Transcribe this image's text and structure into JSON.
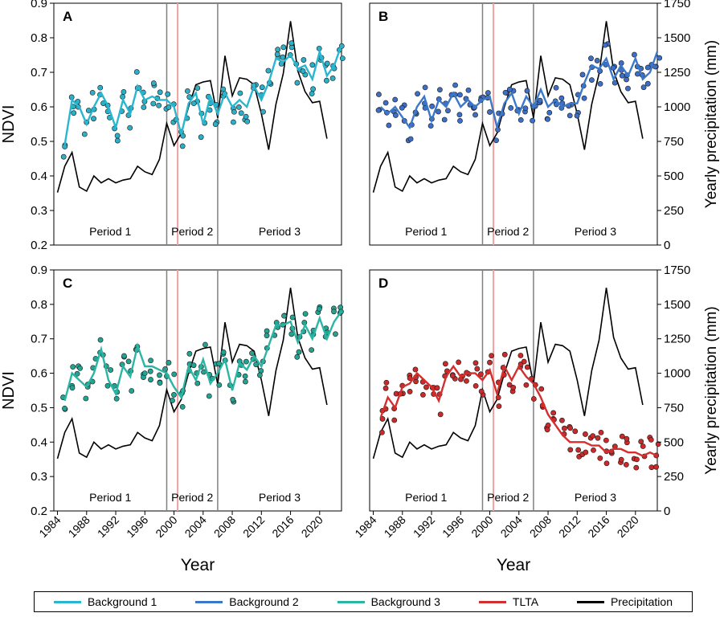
{
  "figure": {
    "x_axis_label": "Year",
    "left_axis_label": "NDVI",
    "right_axis_label": "Yearly precipitation (mm)",
    "period_labels": [
      "Period 1",
      "Period 2",
      "Period 3"
    ],
    "boundary_years": [
      1999,
      2006
    ],
    "event_year": 2000.5,
    "x_ticks": [
      1984,
      1988,
      1992,
      1996,
      2000,
      2004,
      2008,
      2012,
      2016,
      2020
    ],
    "ndvi_ticks": [
      "0.2",
      "0.3",
      "0.4",
      "0.5",
      "0.6",
      "0.7",
      "0.8",
      "0.9"
    ],
    "precip_ticks": [
      "0",
      "250",
      "500",
      "750",
      "1000",
      "1250",
      "1500",
      "1750"
    ]
  },
  "legend": [
    {
      "label": "Background 1",
      "color": "#29b6d0"
    },
    {
      "label": "Background 2",
      "color": "#3b78c9"
    },
    {
      "label": "Background 3",
      "color": "#2bb5a4"
    },
    {
      "label": "TLTA",
      "color": "#d42f2f"
    },
    {
      "label": "Precipitation",
      "color": "#000000"
    }
  ],
  "chart_data": [
    {
      "type": "line",
      "panel": "A",
      "title": "",
      "xlabel": "",
      "ylabel": "NDVI",
      "ylim": [
        0.2,
        0.9
      ],
      "xlim": [
        1983.5,
        2023
      ],
      "series": [
        {
          "name": "Background 1",
          "color": "#29b6d0",
          "point_fill": "#2bb0c9",
          "x": [
            1985,
            1986,
            1987,
            1988,
            1989,
            1990,
            1991,
            1992,
            1993,
            1994,
            1995,
            1996,
            1997,
            1998,
            1999,
            2000,
            2001,
            2002,
            2003,
            2004,
            2005,
            2006,
            2007,
            2008,
            2009,
            2010,
            2011,
            2012,
            2013,
            2014,
            2015,
            2016,
            2017,
            2018,
            2019,
            2020,
            2021,
            2022,
            2023
          ],
          "values": [
            0.49,
            0.62,
            0.6,
            0.55,
            0.6,
            0.64,
            0.6,
            0.54,
            0.62,
            0.58,
            0.66,
            0.62,
            0.63,
            0.62,
            0.62,
            0.6,
            0.52,
            0.61,
            0.64,
            0.55,
            0.63,
            0.58,
            0.64,
            0.6,
            0.62,
            0.6,
            0.66,
            0.62,
            0.67,
            0.74,
            0.73,
            0.75,
            0.71,
            0.72,
            0.68,
            0.76,
            0.69,
            0.72,
            0.78
          ]
        }
      ],
      "precipitation_mm": [
        380,
        570,
        670,
        420,
        390,
        500,
        450,
        480,
        450,
        470,
        480,
        570,
        530,
        510,
        620,
        880,
        720,
        810,
        1000,
        1160,
        1180,
        1190,
        920,
        1370,
        1080,
        1210,
        1200,
        1160,
        950,
        690,
        1020,
        1240,
        1620,
        1260,
        1110,
        1030,
        1040,
        770
      ],
      "precipitation_years": [
        1984,
        1985,
        1986,
        1987,
        1988,
        1989,
        1990,
        1991,
        1992,
        1993,
        1994,
        1995,
        1996,
        1997,
        1998,
        1999,
        2000,
        2001,
        2002,
        2003,
        2004,
        2005,
        2006,
        2007,
        2008,
        2009,
        2010,
        2011,
        2012,
        2013,
        2014,
        2015,
        2016,
        2017,
        2018,
        2019,
        2020,
        2021
      ]
    },
    {
      "type": "line",
      "panel": "B",
      "title": "",
      "xlabel": "",
      "ylabel": "Yearly precipitation (mm)",
      "ylim": [
        0.2,
        0.9
      ],
      "xlim": [
        1983.5,
        2023
      ],
      "series": [
        {
          "name": "Background 2",
          "color": "#3b78c9",
          "point_fill": "#3d6fc7",
          "x": [
            1985,
            1986,
            1987,
            1988,
            1989,
            1990,
            1991,
            1992,
            1993,
            1994,
            1995,
            1996,
            1997,
            1998,
            1999,
            2000,
            2001,
            2002,
            2003,
            2004,
            2005,
            2006,
            2007,
            2008,
            2009,
            2010,
            2011,
            2012,
            2013,
            2014,
            2015,
            2016,
            2017,
            2018,
            2019,
            2020,
            2021,
            2022,
            2023
          ],
          "values": [
            0.6,
            0.58,
            0.6,
            0.57,
            0.54,
            0.6,
            0.63,
            0.56,
            0.62,
            0.6,
            0.64,
            0.6,
            0.62,
            0.6,
            0.62,
            0.63,
            0.54,
            0.61,
            0.64,
            0.58,
            0.63,
            0.6,
            0.65,
            0.6,
            0.62,
            0.6,
            0.61,
            0.61,
            0.67,
            0.72,
            0.71,
            0.74,
            0.68,
            0.72,
            0.69,
            0.74,
            0.68,
            0.7,
            0.76
          ]
        }
      ],
      "precipitation_mm": [
        380,
        570,
        670,
        420,
        390,
        500,
        450,
        480,
        450,
        470,
        480,
        570,
        530,
        510,
        620,
        880,
        720,
        810,
        1000,
        1160,
        1180,
        1190,
        920,
        1370,
        1080,
        1210,
        1200,
        1160,
        950,
        690,
        1020,
        1240,
        1620,
        1260,
        1110,
        1030,
        1040,
        770
      ],
      "precipitation_years": [
        1984,
        1985,
        1986,
        1987,
        1988,
        1989,
        1990,
        1991,
        1992,
        1993,
        1994,
        1995,
        1996,
        1997,
        1998,
        1999,
        2000,
        2001,
        2002,
        2003,
        2004,
        2005,
        2006,
        2007,
        2008,
        2009,
        2010,
        2011,
        2012,
        2013,
        2014,
        2015,
        2016,
        2017,
        2018,
        2019,
        2020,
        2021
      ]
    },
    {
      "type": "line",
      "panel": "C",
      "title": "",
      "xlabel": "Year",
      "ylabel": "NDVI",
      "ylim": [
        0.2,
        0.9
      ],
      "xlim": [
        1983.5,
        2023
      ],
      "series": [
        {
          "name": "Background 3",
          "color": "#2bb5a4",
          "point_fill": "#23a392",
          "x": [
            1985,
            1986,
            1987,
            1988,
            1989,
            1990,
            1991,
            1992,
            1993,
            1994,
            1995,
            1996,
            1997,
            1998,
            1999,
            2000,
            2001,
            2002,
            2003,
            2004,
            2005,
            2006,
            2007,
            2008,
            2009,
            2010,
            2011,
            2012,
            2013,
            2014,
            2015,
            2016,
            2017,
            2018,
            2019,
            2020,
            2021,
            2022,
            2023
          ],
          "values": [
            0.52,
            0.6,
            0.58,
            0.56,
            0.6,
            0.67,
            0.58,
            0.54,
            0.62,
            0.59,
            0.68,
            0.62,
            0.62,
            0.61,
            0.6,
            0.56,
            0.53,
            0.62,
            0.58,
            0.64,
            0.57,
            0.6,
            0.64,
            0.55,
            0.63,
            0.61,
            0.65,
            0.62,
            0.68,
            0.74,
            0.74,
            0.75,
            0.69,
            0.74,
            0.7,
            0.76,
            0.7,
            0.75,
            0.78
          ]
        }
      ],
      "precipitation_mm": [
        380,
        570,
        670,
        420,
        390,
        500,
        450,
        480,
        450,
        470,
        480,
        570,
        530,
        510,
        620,
        880,
        720,
        810,
        1000,
        1160,
        1180,
        1190,
        920,
        1370,
        1080,
        1210,
        1200,
        1160,
        950,
        690,
        1020,
        1240,
        1620,
        1260,
        1110,
        1030,
        1040,
        770
      ],
      "precipitation_years": [
        1984,
        1985,
        1986,
        1987,
        1988,
        1989,
        1990,
        1991,
        1992,
        1993,
        1994,
        1995,
        1996,
        1997,
        1998,
        1999,
        2000,
        2001,
        2002,
        2003,
        2004,
        2005,
        2006,
        2007,
        2008,
        2009,
        2010,
        2011,
        2012,
        2013,
        2014,
        2015,
        2016,
        2017,
        2018,
        2019,
        2020,
        2021
      ]
    },
    {
      "type": "line",
      "panel": "D",
      "title": "",
      "xlabel": "Year",
      "ylabel": "Yearly precipitation (mm)",
      "ylim": [
        0.2,
        0.9
      ],
      "xlim": [
        1983.5,
        2023
      ],
      "series": [
        {
          "name": "TLTA",
          "color": "#d42f2f",
          "point_fill": "#c92a2a",
          "x": [
            1985,
            1986,
            1987,
            1988,
            1989,
            1990,
            1991,
            1992,
            1993,
            1994,
            1995,
            1996,
            1997,
            1998,
            1999,
            2000,
            2001,
            2002,
            2003,
            2004,
            2005,
            2006,
            2007,
            2008,
            2009,
            2010,
            2011,
            2012,
            2013,
            2014,
            2015,
            2016,
            2017,
            2018,
            2019,
            2020,
            2021,
            2022,
            2023
          ],
          "values": [
            0.47,
            0.53,
            0.5,
            0.56,
            0.57,
            0.6,
            0.58,
            0.56,
            0.52,
            0.59,
            0.62,
            0.59,
            0.6,
            0.6,
            0.58,
            0.61,
            0.54,
            0.62,
            0.58,
            0.62,
            0.59,
            0.57,
            0.53,
            0.48,
            0.45,
            0.42,
            0.4,
            0.4,
            0.4,
            0.39,
            0.39,
            0.37,
            0.38,
            0.38,
            0.37,
            0.37,
            0.36,
            0.37,
            0.36
          ]
        }
      ],
      "precipitation_mm": [
        380,
        570,
        670,
        420,
        390,
        500,
        450,
        480,
        450,
        470,
        480,
        570,
        530,
        510,
        620,
        880,
        720,
        810,
        1000,
        1160,
        1180,
        1190,
        920,
        1370,
        1080,
        1210,
        1200,
        1160,
        950,
        690,
        1020,
        1240,
        1620,
        1260,
        1110,
        1030,
        1040,
        770
      ],
      "precipitation_years": [
        1984,
        1985,
        1986,
        1987,
        1988,
        1989,
        1990,
        1991,
        1992,
        1993,
        1994,
        1995,
        1996,
        1997,
        1998,
        1999,
        2000,
        2001,
        2002,
        2003,
        2004,
        2005,
        2006,
        2007,
        2008,
        2009,
        2010,
        2011,
        2012,
        2013,
        2014,
        2015,
        2016,
        2017,
        2018,
        2019,
        2020,
        2021
      ]
    }
  ]
}
